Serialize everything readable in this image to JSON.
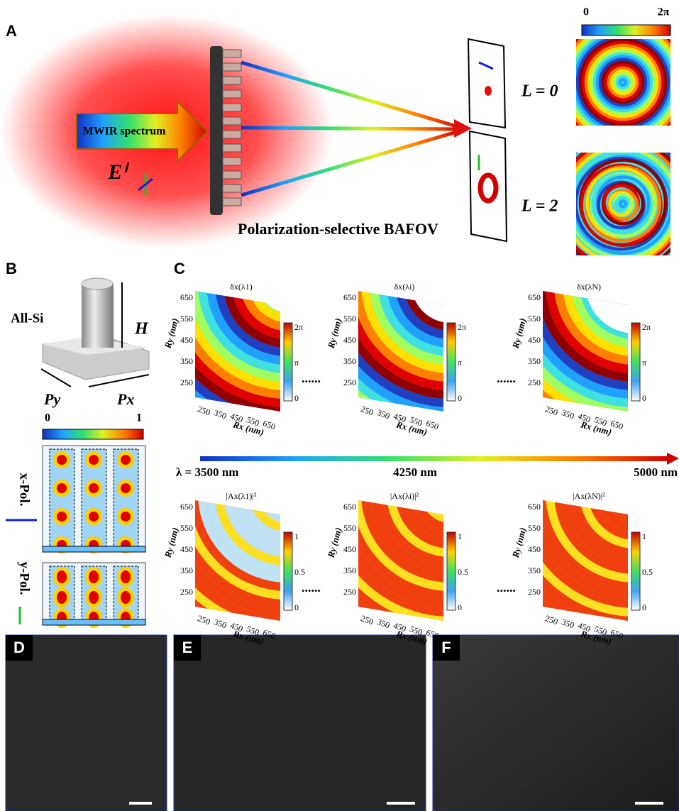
{
  "panel_a": {
    "label": "A",
    "colorbar_min": "0",
    "colorbar_max": "2π",
    "mode_labels": [
      "L = 0",
      "L = 2"
    ],
    "arrow_text": "MWIR spectrum",
    "field_label": "Eⁱ",
    "caption": "Polarization-selective BAFOV"
  },
  "panel_b": {
    "label": "B",
    "material": "All-Si",
    "height_label": "H",
    "period_labels": [
      "Py",
      "Px"
    ],
    "colorbar_min": "0",
    "colorbar_max": "1",
    "polarizations": [
      "x-Pol.",
      "y-Pol."
    ]
  },
  "panel_c": {
    "label": "C",
    "x_axis_label": "Rx (nm)",
    "y_axis_label": "Ry (nm)",
    "axis_ticks": [
      "250",
      "350",
      "450",
      "550",
      "650"
    ],
    "phase_titles": [
      "δx(λ1)",
      "δx(λi)",
      "δx(λN)"
    ],
    "phase_colorbar": [
      "2π",
      "π",
      "0"
    ],
    "amplitude_titles": [
      "|Ax(λ1)|²",
      "|Ax(λi)|²",
      "|Ax(λN)|²"
    ],
    "amplitude_colorbar": [
      "1",
      "0.5",
      "0"
    ],
    "ellipsis": "......",
    "wavelength_labels": [
      "λ = 3500 nm",
      "4250 nm",
      "5000 nm"
    ]
  },
  "panel_d": {
    "label": "D"
  },
  "panel_e": {
    "label": "E"
  },
  "panel_f": {
    "label": "F"
  }
}
